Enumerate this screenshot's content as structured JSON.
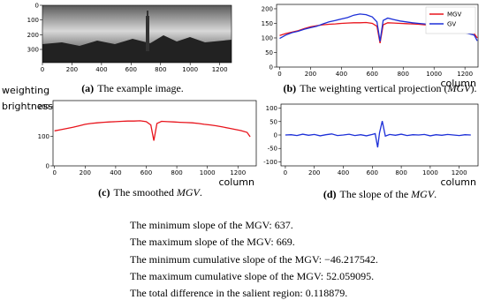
{
  "chart_data": [
    {
      "type": "image",
      "xlim": [
        0,
        1280
      ],
      "ylim": [
        0,
        390
      ],
      "xticks": [
        0,
        200,
        400,
        600,
        800,
        1000,
        1200
      ],
      "yticks": [
        0,
        100,
        200,
        300
      ],
      "caption": {
        "label": "(a)",
        "text": "The example image."
      }
    },
    {
      "type": "line",
      "xlabel": "column",
      "legend": "upper right",
      "xlim": [
        -20,
        1285
      ],
      "ylim": [
        0,
        215
      ],
      "xticks": [
        0,
        200,
        400,
        600,
        800,
        1000,
        1200
      ],
      "yticks": [
        0,
        50,
        100,
        150,
        200
      ],
      "x": [
        0,
        40,
        80,
        120,
        160,
        200,
        240,
        280,
        320,
        360,
        400,
        440,
        480,
        520,
        560,
        600,
        630,
        650,
        670,
        700,
        740,
        780,
        820,
        860,
        900,
        940,
        980,
        1020,
        1060,
        1100,
        1140,
        1180,
        1220,
        1260,
        1280
      ],
      "series": [
        {
          "name": "MGV",
          "color": "#e8141c",
          "values": [
            108,
            115,
            120,
            125,
            132,
            138,
            142,
            145,
            147,
            148,
            150,
            151,
            152,
            152,
            153,
            150,
            140,
            82,
            145,
            152,
            151,
            150,
            149,
            148,
            147,
            145,
            142,
            140,
            137,
            133,
            128,
            124,
            120,
            115,
            100
          ]
        },
        {
          "name": "GV",
          "color": "#1c2fd8",
          "values": [
            98,
            110,
            118,
            123,
            130,
            135,
            140,
            148,
            155,
            160,
            165,
            170,
            178,
            182,
            180,
            172,
            155,
            88,
            160,
            168,
            163,
            158,
            155,
            152,
            150,
            148,
            145,
            140,
            135,
            130,
            125,
            120,
            115,
            110,
            90
          ]
        }
      ],
      "caption": {
        "label": "(b)",
        "text": "The weighting vertical projection (",
        "em": "MGV",
        "tail": ")."
      }
    },
    {
      "type": "line",
      "xlabel": "column",
      "ylabel_lines": [
        "weighting",
        "brightness"
      ],
      "xlim": [
        -10,
        1320
      ],
      "ylim": [
        0,
        220
      ],
      "xticks": [
        0,
        200,
        400,
        600,
        800,
        1000,
        1200
      ],
      "yticks": [
        0,
        100,
        200
      ],
      "x": [
        0,
        40,
        80,
        120,
        160,
        200,
        240,
        280,
        320,
        360,
        400,
        440,
        480,
        520,
        560,
        600,
        630,
        650,
        670,
        700,
        740,
        780,
        820,
        860,
        900,
        940,
        980,
        1020,
        1060,
        1100,
        1140,
        1180,
        1220,
        1260,
        1280
      ],
      "series": [
        {
          "color": "#e8141c",
          "values": [
            118,
            122,
            126,
            130,
            135,
            140,
            143,
            145,
            147,
            148,
            149,
            150,
            151,
            151,
            152,
            149,
            138,
            85,
            143,
            150,
            149,
            148,
            147,
            146,
            145,
            143,
            140,
            138,
            135,
            131,
            127,
            123,
            119,
            113,
            98
          ]
        }
      ],
      "caption": {
        "label": "(c)",
        "text": "The smoothed ",
        "em": "MGV",
        "tail": "."
      }
    },
    {
      "type": "line",
      "xlabel": "column",
      "xlim": [
        -30,
        1330
      ],
      "ylim": [
        -115,
        115
      ],
      "xticks": [
        0,
        200,
        400,
        600,
        800,
        1000,
        1200
      ],
      "yticks": [
        -100,
        -50,
        0,
        50,
        100
      ],
      "x": [
        0,
        40,
        80,
        120,
        160,
        200,
        240,
        280,
        320,
        360,
        400,
        440,
        480,
        520,
        560,
        600,
        620,
        637,
        650,
        669,
        690,
        720,
        760,
        800,
        840,
        880,
        920,
        960,
        1000,
        1040,
        1080,
        1120,
        1160,
        1200,
        1240,
        1280
      ],
      "series": [
        {
          "color": "#1c2fd8",
          "values": [
            0,
            1,
            -2,
            3,
            -1,
            2,
            -3,
            1,
            4,
            -2,
            0,
            3,
            -2,
            1,
            -3,
            2,
            5,
            -46,
            8,
            52,
            -4,
            2,
            -1,
            3,
            -2,
            1,
            0,
            2,
            -3,
            1,
            -1,
            2,
            0,
            -2,
            1,
            0
          ]
        }
      ],
      "caption": {
        "label": "(d)",
        "text": "The slope of the ",
        "em": "MGV",
        "tail": "."
      }
    }
  ],
  "notes": [
    "The minimum slope of the MGV: 637.",
    "The maximum slope of the MGV: 669.",
    "The minimum cumulative slope of the MGV: −46.217542.",
    "The maximum cumulative slope of the MGV: 52.059095.",
    "The total difference in the salient region: 0.118879."
  ]
}
